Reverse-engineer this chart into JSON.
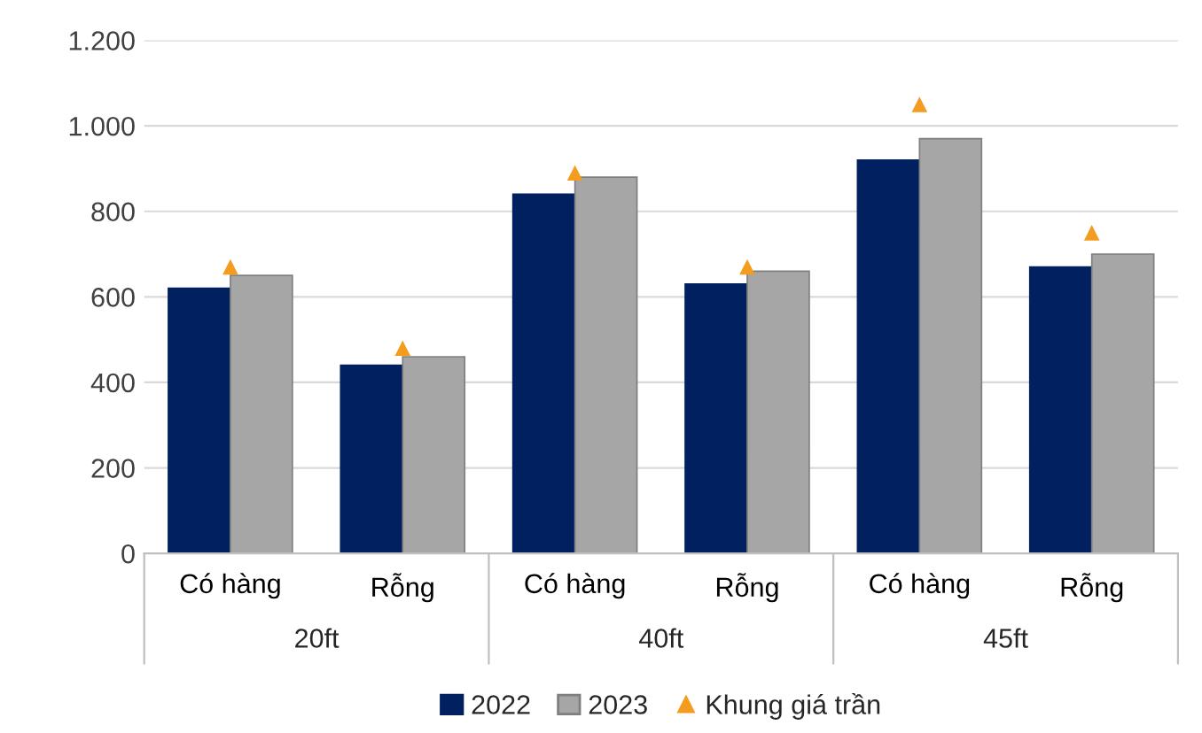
{
  "chart_data": {
    "type": "bar",
    "categories": [
      "Có hàng",
      "Rỗng",
      "Có hàng",
      "Rỗng",
      "Có hàng",
      "Rỗng"
    ],
    "series": [
      {
        "name": "2022",
        "color": "#002060",
        "values": [
          620,
          440,
          840,
          630,
          920,
          670
        ]
      },
      {
        "name": "2023",
        "color": "#a6a6a6",
        "values": [
          650,
          460,
          880,
          660,
          970,
          700
        ]
      },
      {
        "name": "Khung giá trần",
        "type": "scatter",
        "color": "#f39c1f",
        "marker": "triangle",
        "values": [
          670,
          480,
          890,
          670,
          1050,
          750
        ]
      }
    ],
    "annotations": [
      "20ft",
      "40ft",
      "45ft"
    ],
    "ylim": [
      0,
      1200
    ],
    "yticks": [
      0,
      200,
      400,
      600,
      800,
      {
        "value": 1000,
        "label": "1.000"
      },
      {
        "value": 1200,
        "label": "1.200"
      }
    ],
    "grid": "y",
    "legend": "bottom"
  }
}
